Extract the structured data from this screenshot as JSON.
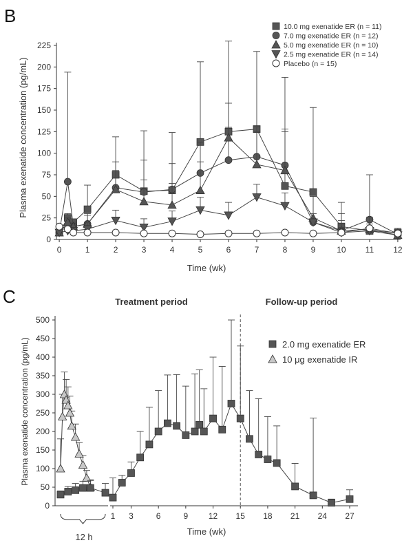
{
  "chart_data": [
    {
      "panel_label": "B",
      "type": "line",
      "xlabel": "Time (wk)",
      "ylabel": "Plasma exenatide concentration (pg/mL)",
      "xlim": [
        -0.1,
        12.1
      ],
      "ylim": [
        0,
        225
      ],
      "xticks": [
        0,
        1,
        2,
        3,
        4,
        5,
        6,
        7,
        8,
        9,
        10,
        11,
        12
      ],
      "yticks": [
        0,
        25,
        50,
        75,
        100,
        125,
        150,
        175,
        200,
        225
      ],
      "legend_position": "top-right",
      "series": [
        {
          "name": "10.0 mg exenatide ER (n = 11)",
          "marker": "square",
          "fill": "#555555",
          "x": [
            0,
            0.3,
            0.5,
            1,
            2,
            3,
            4,
            5,
            6,
            7,
            8,
            9,
            10,
            11,
            12
          ],
          "y": [
            8,
            25,
            20,
            35,
            75,
            56,
            57,
            113,
            125,
            128,
            62,
            55,
            15,
            10,
            8
          ],
          "err": [
            0,
            5,
            0,
            28,
            44,
            70,
            67,
            93,
            105,
            90,
            126,
            98,
            28,
            0,
            5
          ]
        },
        {
          "name": "7.0 mg exenatide ER (n = 12)",
          "marker": "circle",
          "fill": "#555555",
          "x": [
            0,
            0.3,
            0.5,
            1,
            2,
            3,
            4,
            5,
            6,
            7,
            8,
            9,
            10,
            11,
            12
          ],
          "y": [
            8,
            67,
            15,
            18,
            60,
            55,
            58,
            77,
            92,
            96,
            86,
            20,
            10,
            23,
            6
          ],
          "err": [
            0,
            127,
            5,
            12,
            30,
            37,
            30,
            36,
            38,
            35,
            42,
            30,
            20,
            52,
            5
          ]
        },
        {
          "name": "5.0 mg exenatide ER (n = 10)",
          "marker": "triangle-up",
          "fill": "#555555",
          "x": [
            0,
            0.3,
            0.5,
            1,
            2,
            3,
            4,
            5,
            6,
            7,
            8,
            9,
            10,
            11,
            12
          ],
          "y": [
            8,
            20,
            15,
            18,
            58,
            44,
            40,
            57,
            118,
            87,
            80,
            25,
            10,
            12,
            5
          ],
          "err": [
            0,
            5,
            5,
            10,
            22,
            25,
            25,
            33,
            40,
            38,
            45,
            25,
            12,
            14,
            5
          ]
        },
        {
          "name": "2.5 mg exenatide ER (n = 14)",
          "marker": "triangle-down",
          "fill": "#555555",
          "x": [
            0,
            0.3,
            0.5,
            1,
            2,
            3,
            4,
            5,
            6,
            7,
            8,
            9,
            10,
            11,
            12
          ],
          "y": [
            8,
            10,
            10,
            12,
            22,
            14,
            21,
            34,
            28,
            49,
            39,
            20,
            8,
            10,
            5
          ],
          "err": [
            0,
            3,
            3,
            8,
            12,
            10,
            12,
            15,
            15,
            15,
            15,
            10,
            6,
            8,
            4
          ]
        },
        {
          "name": "Placebo (n = 15)",
          "marker": "circle-open",
          "fill": "#ffffff",
          "x": [
            0,
            0.3,
            0.5,
            1,
            2,
            3,
            4,
            5,
            6,
            7,
            8,
            9,
            10,
            11,
            12
          ],
          "y": [
            15,
            12,
            8,
            8,
            8,
            7,
            7,
            6,
            7,
            7,
            8,
            7,
            8,
            13,
            7
          ],
          "err": [
            0,
            0,
            0,
            0,
            0,
            0,
            0,
            0,
            0,
            0,
            0,
            0,
            0,
            0,
            0
          ]
        }
      ]
    },
    {
      "panel_label": "C",
      "type": "line",
      "xlabel": "Time (wk)",
      "ylabel": "Plasma exenatide concentration (pg/mL)",
      "ylim": [
        0,
        500
      ],
      "yticks": [
        0,
        50,
        100,
        150,
        200,
        250,
        300,
        350,
        400,
        450,
        500
      ],
      "xticks_hours_label": "12 h",
      "xticks_weeks": [
        1,
        3,
        6,
        9,
        12,
        15,
        18,
        21,
        24,
        27
      ],
      "annotations": [
        "Treatment period",
        "Follow-up period"
      ],
      "period_divider_week": 15,
      "legend_position": "top-right",
      "series": [
        {
          "name": "2.0 mg exenatide ER",
          "marker": "square",
          "fill": "#555555",
          "time_unit": "mixed",
          "hours": [
            0,
            2,
            4,
            6,
            8,
            12
          ],
          "hours_y": [
            30,
            38,
            42,
            48,
            48,
            35
          ],
          "hours_err": [
            10,
            14,
            18,
            18,
            20,
            25
          ],
          "weeks": [
            1,
            2,
            3,
            4,
            5,
            6,
            7,
            8,
            9,
            10,
            10.5,
            11,
            12,
            13,
            14,
            15,
            16,
            17,
            18,
            19,
            21,
            23,
            25,
            27
          ],
          "weeks_y": [
            22,
            62,
            88,
            130,
            165,
            200,
            222,
            215,
            190,
            200,
            218,
            200,
            235,
            205,
            275,
            235,
            180,
            138,
            125,
            115,
            52,
            28,
            8,
            18
          ],
          "weeks_err": [
            53,
            20,
            30,
            70,
            100,
            110,
            130,
            138,
            132,
            155,
            148,
            115,
            165,
            170,
            225,
            195,
            130,
            150,
            115,
            100,
            62,
            208,
            10,
            25
          ]
        },
        {
          "name": "10 μg exenatide IR",
          "marker": "triangle-up",
          "fill": "#c8c8c8",
          "time_unit": "hours",
          "hours": [
            0,
            0.5,
            1,
            1.5,
            2,
            2.5,
            3,
            4,
            5,
            6,
            7,
            8
          ],
          "hours_y": [
            100,
            240,
            300,
            285,
            270,
            250,
            215,
            185,
            140,
            110,
            75,
            50
          ],
          "hours_err": [
            80,
            60,
            60,
            55,
            50,
            45,
            40,
            35,
            30,
            25,
            20,
            20
          ]
        }
      ]
    }
  ]
}
